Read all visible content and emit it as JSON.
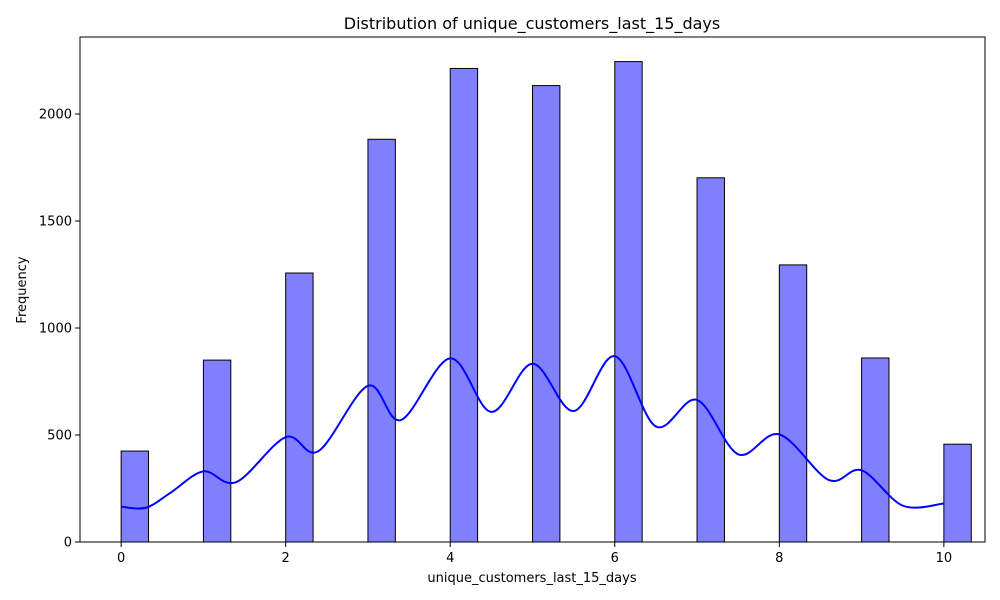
{
  "chart_data": {
    "type": "bar",
    "title": "Distribution of unique_customers_last_15_days",
    "xlabel": "unique_customers_last_15_days",
    "ylabel": "Frequency",
    "xlim": [
      -0.5,
      10.5
    ],
    "ylim": [
      0,
      2360
    ],
    "xticks": [
      0,
      2,
      4,
      6,
      8,
      10
    ],
    "yticks": [
      0,
      500,
      1000,
      1500,
      2000
    ],
    "bar_width": 0.333,
    "bars": [
      {
        "x": 0,
        "value": 425
      },
      {
        "x": 1,
        "value": 850
      },
      {
        "x": 2,
        "value": 1257
      },
      {
        "x": 3,
        "value": 1882
      },
      {
        "x": 4,
        "value": 2213
      },
      {
        "x": 5,
        "value": 2133
      },
      {
        "x": 6,
        "value": 2245
      },
      {
        "x": 7,
        "value": 1702
      },
      {
        "x": 8,
        "value": 1295
      },
      {
        "x": 9,
        "value": 860
      },
      {
        "x": 10,
        "value": 457
      }
    ],
    "kde": {
      "x": [
        0,
        0.3,
        0.6,
        1.0,
        1.4,
        2.0,
        2.4,
        3.0,
        3.4,
        4.0,
        4.5,
        5.0,
        5.5,
        6.0,
        6.5,
        7.0,
        7.5,
        8.0,
        8.6,
        9.0,
        9.5,
        10.0
      ],
      "y": [
        165,
        160,
        230,
        330,
        280,
        490,
        425,
        730,
        570,
        858,
        608,
        833,
        612,
        868,
        540,
        664,
        410,
        503,
        290,
        335,
        170,
        180
      ]
    },
    "colors": {
      "bar_fill": "#8080ff",
      "bar_edge": "#000000",
      "kde_line": "#0000ff"
    },
    "grid": false
  }
}
